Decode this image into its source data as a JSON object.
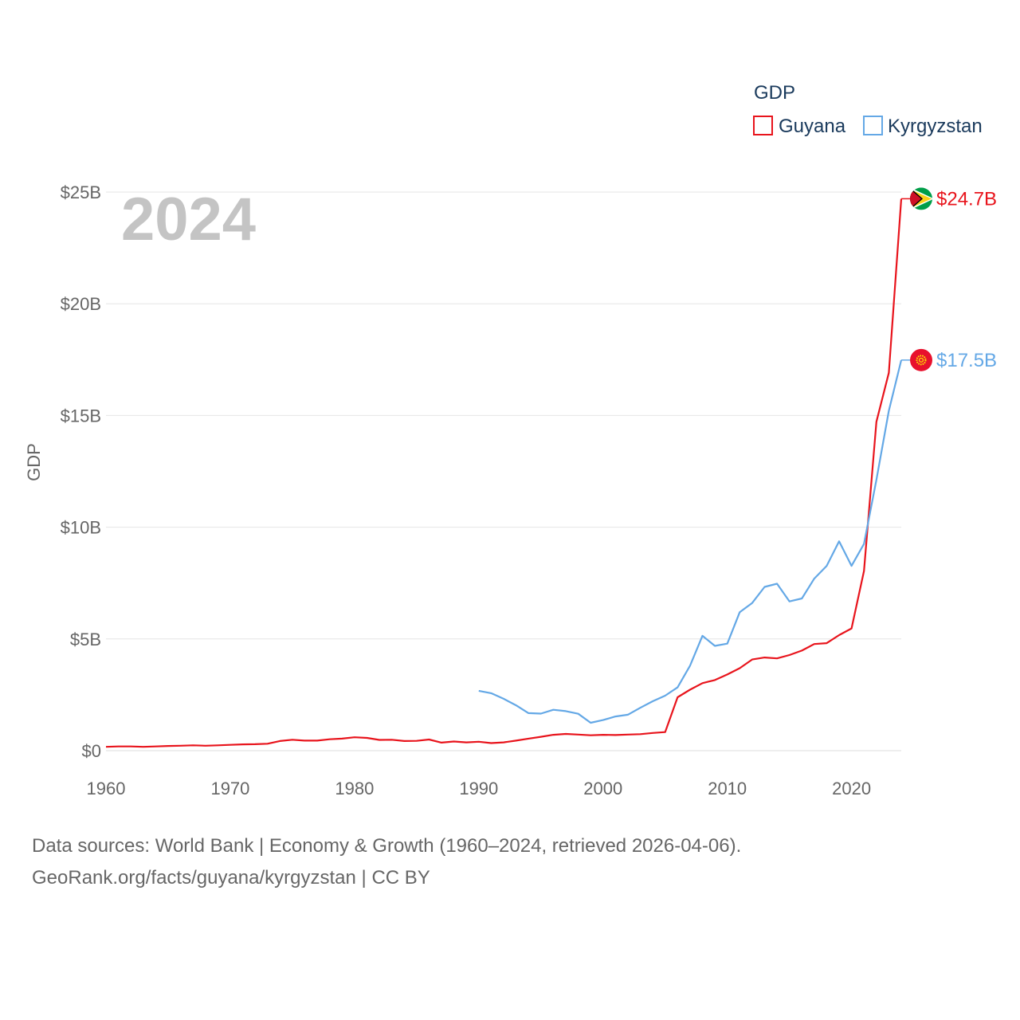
{
  "chart_data": {
    "type": "line",
    "year_label": "2024",
    "ylabel": "GDP",
    "xlabel": "",
    "legend_title": "GDP",
    "legend_position": "top-right",
    "xlim": [
      1960,
      2024
    ],
    "ylim": [
      0,
      25
    ],
    "y_unit": "billion USD",
    "x_ticks": [
      1960,
      1970,
      1980,
      1990,
      2000,
      2010,
      2020
    ],
    "x_tick_labels": [
      "1960",
      "1970",
      "1980",
      "1990",
      "2000",
      "2010",
      "2020"
    ],
    "y_ticks": [
      0,
      5,
      10,
      15,
      20,
      25
    ],
    "y_tick_labels": [
      "$0",
      "$5B",
      "$10B",
      "$15B",
      "$20B",
      "$25B"
    ],
    "grid": true,
    "series": [
      {
        "name": "Guyana",
        "color": "#e8141c",
        "end_label": "$24.7B",
        "flag_icon": "guyana-flag-icon",
        "x": [
          1960,
          1961,
          1962,
          1963,
          1964,
          1965,
          1966,
          1967,
          1968,
          1969,
          1970,
          1971,
          1972,
          1973,
          1974,
          1975,
          1976,
          1977,
          1978,
          1979,
          1980,
          1981,
          1982,
          1983,
          1984,
          1985,
          1986,
          1987,
          1988,
          1989,
          1990,
          1991,
          1992,
          1993,
          1994,
          1995,
          1996,
          1997,
          1998,
          1999,
          2000,
          2001,
          2002,
          2003,
          2004,
          2005,
          2006,
          2007,
          2008,
          2009,
          2010,
          2011,
          2012,
          2013,
          2014,
          2015,
          2016,
          2017,
          2018,
          2019,
          2020,
          2021,
          2022,
          2023,
          2024
        ],
        "values": [
          0.17,
          0.19,
          0.19,
          0.17,
          0.19,
          0.21,
          0.22,
          0.24,
          0.22,
          0.24,
          0.26,
          0.28,
          0.29,
          0.31,
          0.43,
          0.49,
          0.45,
          0.45,
          0.51,
          0.54,
          0.6,
          0.57,
          0.48,
          0.49,
          0.43,
          0.44,
          0.5,
          0.36,
          0.41,
          0.37,
          0.4,
          0.34,
          0.37,
          0.45,
          0.54,
          0.62,
          0.71,
          0.75,
          0.72,
          0.69,
          0.71,
          0.7,
          0.72,
          0.74,
          0.79,
          0.83,
          2.39,
          2.73,
          3.02,
          3.16,
          3.41,
          3.69,
          4.08,
          4.17,
          4.13,
          4.28,
          4.48,
          4.77,
          4.81,
          5.17,
          5.47,
          8.04,
          14.72,
          16.91,
          24.7
        ]
      },
      {
        "name": "Kyrgyzstan",
        "color": "#64a8e6",
        "end_label": "$17.5B",
        "flag_icon": "kyrgyzstan-flag-icon",
        "x": [
          1990,
          1991,
          1992,
          1993,
          1994,
          1995,
          1996,
          1997,
          1998,
          1999,
          2000,
          2001,
          2002,
          2003,
          2004,
          2005,
          2006,
          2007,
          2008,
          2009,
          2010,
          2011,
          2012,
          2013,
          2014,
          2015,
          2016,
          2017,
          2018,
          2019,
          2020,
          2021,
          2022,
          2023,
          2024
        ],
        "values": [
          2.68,
          2.57,
          2.32,
          2.03,
          1.68,
          1.66,
          1.83,
          1.77,
          1.65,
          1.25,
          1.37,
          1.53,
          1.61,
          1.92,
          2.21,
          2.46,
          2.83,
          3.8,
          5.14,
          4.69,
          4.79,
          6.2,
          6.61,
          7.33,
          7.47,
          6.68,
          6.81,
          7.7,
          8.27,
          9.37,
          8.27,
          9.25,
          12.12,
          15.21,
          17.48
        ]
      }
    ]
  },
  "footer": {
    "line1": "Data sources: World Bank | Economy & Growth (1960–2024, retrieved 2026-04-06).",
    "line2": "GeoRank.org/facts/guyana/kyrgyzstan | CC BY"
  }
}
